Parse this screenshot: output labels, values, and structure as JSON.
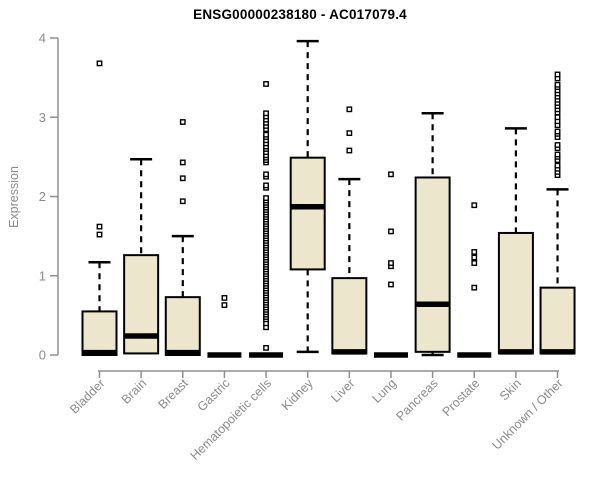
{
  "chart_data": {
    "type": "boxplot",
    "title": "ENSG00000238180 - AC017079.4",
    "ylabel": "Expression",
    "ylim": [
      0,
      4
    ],
    "yticks": [
      0,
      1,
      2,
      3,
      4
    ],
    "grid": false,
    "legend": "none",
    "box_fill": "#ece7cc",
    "box_stroke": "#000000",
    "axis_color": "#8f8f8f",
    "label_color": "#8a8a8a",
    "title_color": "#000000",
    "categories": [
      "Bladder",
      "Brain",
      "Breast",
      "Gastric",
      "Hematopoietic cells",
      "Kidney",
      "Liver",
      "Lung",
      "Pancreas",
      "Prostate",
      "Skin",
      "Unknown / Other"
    ],
    "series": [
      {
        "category": "Bladder",
        "whisker_low": 0,
        "q1": 0,
        "median": 0.03,
        "q3": 0.55,
        "whisker_high": 1.17,
        "outliers": [
          1.52,
          1.62,
          3.68
        ]
      },
      {
        "category": "Brain",
        "whisker_low": 0.02,
        "q1": 0.02,
        "median": 0.24,
        "q3": 1.26,
        "whisker_high": 2.47,
        "outliers": []
      },
      {
        "category": "Breast",
        "whisker_low": 0,
        "q1": 0,
        "median": 0.03,
        "q3": 0.73,
        "whisker_high": 1.5,
        "outliers": [
          1.94,
          2.23,
          2.43,
          2.94
        ]
      },
      {
        "category": "Gastric",
        "whisker_low": 0,
        "q1": 0,
        "median": 0,
        "q3": 0,
        "whisker_high": 0,
        "outliers": [
          0.63,
          0.72
        ]
      },
      {
        "category": "Hematopoietic cells",
        "whisker_low": 0,
        "q1": 0,
        "median": 0,
        "q3": 0,
        "whisker_high": 0,
        "outliers": [
          0.09,
          0.35,
          0.4,
          0.45,
          0.48,
          0.51,
          0.54,
          0.57,
          0.6,
          0.63,
          0.66,
          0.69,
          0.72,
          0.75,
          0.78,
          0.81,
          0.84,
          0.87,
          0.9,
          0.93,
          0.96,
          0.99,
          1.02,
          1.05,
          1.08,
          1.11,
          1.14,
          1.17,
          1.2,
          1.23,
          1.26,
          1.29,
          1.32,
          1.35,
          1.38,
          1.41,
          1.44,
          1.47,
          1.5,
          1.53,
          1.56,
          1.59,
          1.62,
          1.65,
          1.68,
          1.71,
          1.74,
          1.77,
          1.8,
          1.83,
          1.86,
          1.89,
          1.92,
          1.95,
          1.98,
          2.11,
          2.14,
          2.25,
          2.28,
          2.43,
          2.46,
          2.49,
          2.52,
          2.56,
          2.6,
          2.63,
          2.67,
          2.71,
          2.75,
          2.78,
          2.85,
          2.89,
          2.93,
          2.97,
          3.01,
          3.05,
          3.42
        ]
      },
      {
        "category": "Kidney",
        "whisker_low": 0.04,
        "q1": 1.08,
        "median": 1.87,
        "q3": 2.49,
        "whisker_high": 3.96,
        "outliers": []
      },
      {
        "category": "Liver",
        "whisker_low": 0,
        "q1": 0.02,
        "median": 0.04,
        "q3": 0.97,
        "whisker_high": 2.22,
        "outliers": [
          2.58,
          2.8,
          3.1
        ]
      },
      {
        "category": "Lung",
        "whisker_low": 0,
        "q1": 0,
        "median": 0,
        "q3": 0,
        "whisker_high": 0,
        "outliers": [
          0.89,
          1.12,
          1.16,
          1.56,
          2.28
        ]
      },
      {
        "category": "Pancreas",
        "whisker_low": 0,
        "q1": 0.04,
        "median": 0.64,
        "q3": 2.24,
        "whisker_high": 3.05,
        "outliers": []
      },
      {
        "category": "Prostate",
        "whisker_low": 0,
        "q1": 0,
        "median": 0,
        "q3": 0,
        "whisker_high": 0,
        "outliers": [
          0.85,
          1.16,
          1.23,
          1.3,
          1.89
        ]
      },
      {
        "category": "Skin",
        "whisker_low": 0,
        "q1": 0.02,
        "median": 0.04,
        "q3": 1.54,
        "whisker_high": 2.86,
        "outliers": []
      },
      {
        "category": "Unknown / Other",
        "whisker_low": 0,
        "q1": 0.02,
        "median": 0.04,
        "q3": 0.85,
        "whisker_high": 2.09,
        "outliers": [
          2.27,
          2.31,
          2.35,
          2.39,
          2.46,
          2.5,
          2.53,
          2.61,
          2.65,
          2.75,
          2.79,
          2.82,
          2.9,
          2.95,
          3.0,
          3.06,
          3.1,
          3.14,
          3.18,
          3.22,
          3.26,
          3.3,
          3.34,
          3.38,
          3.41,
          3.49,
          3.54
        ]
      }
    ]
  }
}
